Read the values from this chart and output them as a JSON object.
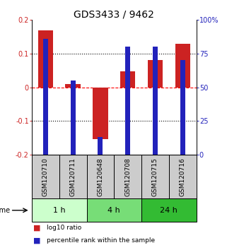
{
  "title": "GDS3433 / 9462",
  "samples": [
    "GSM120710",
    "GSM120711",
    "GSM120648",
    "GSM120708",
    "GSM120715",
    "GSM120716"
  ],
  "log10_ratio": [
    0.17,
    0.01,
    -0.155,
    0.047,
    0.082,
    0.13
  ],
  "percentile_rank": [
    86,
    55,
    13,
    80,
    80,
    70
  ],
  "ylim_left": [
    -0.2,
    0.2
  ],
  "ylim_right": [
    0,
    100
  ],
  "yticks_left": [
    -0.2,
    -0.1,
    0.0,
    0.1,
    0.2
  ],
  "ytick_labels_left": [
    "-0.2",
    "-0.1",
    "0",
    "0.1",
    "0.2"
  ],
  "yticks_right": [
    0,
    25,
    50,
    75,
    100
  ],
  "ytick_labels_right": [
    "0",
    "25",
    "50",
    "75",
    "100%"
  ],
  "bar_color_red": "#cc2222",
  "bar_color_blue": "#2222bb",
  "time_groups": [
    {
      "label": "1 h",
      "start": 0,
      "end": 2,
      "color": "#ccffcc"
    },
    {
      "label": "4 h",
      "start": 2,
      "end": 4,
      "color": "#77dd77"
    },
    {
      "label": "24 h",
      "start": 4,
      "end": 6,
      "color": "#33bb33"
    }
  ],
  "legend_red_label": "log10 ratio",
  "legend_blue_label": "percentile rank within the sample",
  "time_label": "time",
  "sample_box_color": "#cccccc",
  "title_fontsize": 10,
  "tick_fontsize": 7,
  "label_fontsize": 6.5,
  "time_fontsize": 8
}
